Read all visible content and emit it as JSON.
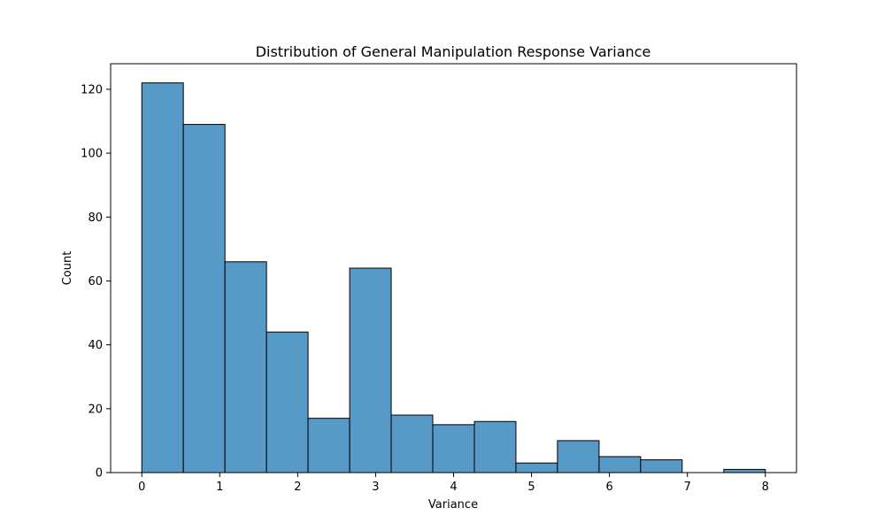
{
  "chart_data": {
    "type": "bar",
    "title": "Distribution of General Manipulation Response Variance",
    "xlabel": "Variance",
    "ylabel": "Count",
    "bar_color": "#5799c7",
    "edge_color": "#000000",
    "xlim": [
      -0.4,
      8.4
    ],
    "ylim": [
      0,
      128
    ],
    "xticks": [
      0,
      1,
      2,
      3,
      4,
      5,
      6,
      7,
      8
    ],
    "yticks": [
      0,
      20,
      40,
      60,
      80,
      100,
      120
    ],
    "bins": [
      {
        "x0": 0.0,
        "x1": 0.533,
        "count": 122
      },
      {
        "x0": 0.533,
        "x1": 1.067,
        "count": 109
      },
      {
        "x0": 1.067,
        "x1": 1.6,
        "count": 66
      },
      {
        "x0": 1.6,
        "x1": 2.133,
        "count": 44
      },
      {
        "x0": 2.133,
        "x1": 2.667,
        "count": 17
      },
      {
        "x0": 2.667,
        "x1": 3.2,
        "count": 64
      },
      {
        "x0": 3.2,
        "x1": 3.733,
        "count": 18
      },
      {
        "x0": 3.733,
        "x1": 4.267,
        "count": 15
      },
      {
        "x0": 4.267,
        "x1": 4.8,
        "count": 16
      },
      {
        "x0": 4.8,
        "x1": 5.333,
        "count": 3
      },
      {
        "x0": 5.333,
        "x1": 5.867,
        "count": 10
      },
      {
        "x0": 5.867,
        "x1": 6.4,
        "count": 5
      },
      {
        "x0": 6.4,
        "x1": 6.933,
        "count": 4
      },
      {
        "x0": 6.933,
        "x1": 7.467,
        "count": 0
      },
      {
        "x0": 7.467,
        "x1": 8.0,
        "count": 1
      }
    ],
    "grid": false,
    "legend": "none"
  }
}
